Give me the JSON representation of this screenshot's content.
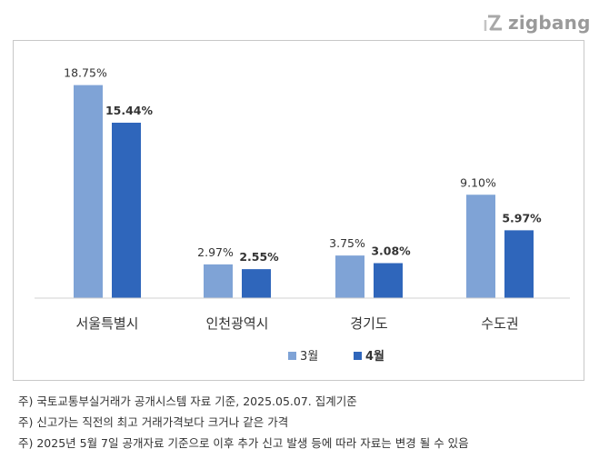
{
  "logo": {
    "text": "zigbang",
    "icon": "zigbang-logo-icon"
  },
  "chart_data": {
    "type": "bar",
    "categories": [
      "서울특별시",
      "인천광역시",
      "경기도",
      "수도권"
    ],
    "series": [
      {
        "name": "3월",
        "values": [
          18.75,
          2.97,
          3.75,
          9.1
        ],
        "labels": [
          "18.75%",
          "2.97%",
          "3.75%",
          "9.10%"
        ],
        "color": "#7fa3d6"
      },
      {
        "name": "4월",
        "values": [
          15.44,
          2.55,
          3.08,
          5.97
        ],
        "labels": [
          "15.44%",
          "2.55%",
          "3.08%",
          "5.97%"
        ],
        "color": "#2f66bb"
      }
    ],
    "ylim": [
      0,
      20
    ],
    "grid": false,
    "legend": "bottom"
  },
  "notes": [
    "주) 국토교통부실거래가 공개시스템 자료 기준, 2025.05.07. 집계기준",
    "주) 신고가는 직전의 최고 거래가격보다 크거나 같은 가격",
    "주) 2025년 5월 7일 공개자료 기준으로 이후 추가 신고 발생 등에 따라 자료는 변경 될 수 있음"
  ]
}
